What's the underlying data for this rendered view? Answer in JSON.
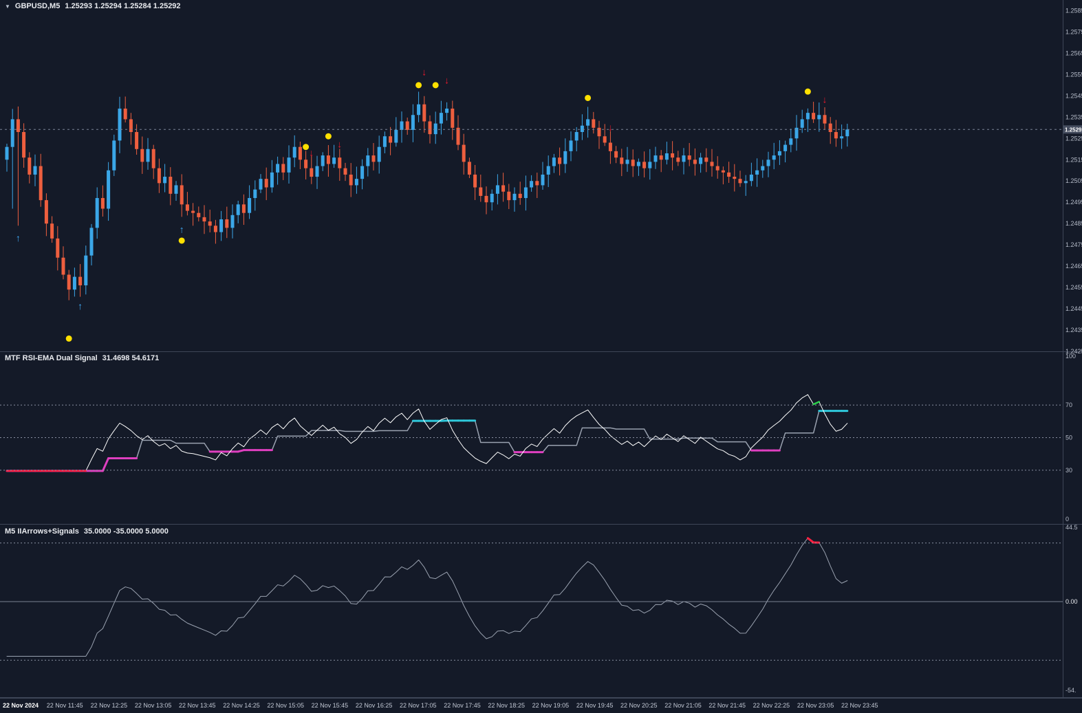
{
  "window": {
    "collapse_icon": "▼",
    "title": {
      "symbol": "GBPUSD,M5",
      "quote": "1.25293 1.25294 1.25284 1.25292"
    }
  },
  "colors": {
    "bg": "#141a28",
    "separator": "#3e4658",
    "axis_text": "#b6bcc9",
    "axis_text_bright": "#e8eaee",
    "grid_dash": "#8a91a3",
    "bull": "#3ba7e8",
    "bear": "#ee5f3f",
    "fast_line": "#ffffff",
    "slow_line": "#9aa2b0",
    "green": "#2bd24b",
    "red": "#ff2040",
    "magenta": "#df3fc0",
    "cyan": "#2fc9dc",
    "yellow": "#ffd21f",
    "dot": "#ffe000",
    "arrow_buy": "#3fa9f5",
    "arrow_sell": "#e8192c",
    "badge_bg": "#454d5f",
    "badge_text": "#ffffff",
    "current_line": "#7c8598"
  },
  "chart_data": [
    {
      "type": "candlestick",
      "pane": "main",
      "symbol": "GBPUSD",
      "timeframe": "M5",
      "quote": {
        "open": "1.25293",
        "high": "1.25294",
        "low": "1.25284",
        "close": "1.25292"
      },
      "price_axis": {
        "min": 1.2425,
        "max": 1.259,
        "first_tick": 1.2585,
        "tick_step": 0.001,
        "current_price": "1.25292",
        "current_price_value": 1.25292
      },
      "first_open": 1.2515,
      "closes": [
        1.2521,
        1.2534,
        1.2528,
        1.2516,
        1.2508,
        1.2512,
        1.2496,
        1.2485,
        1.2478,
        1.2469,
        1.2461,
        1.2454,
        1.246,
        1.2456,
        1.247,
        1.2483,
        1.2497,
        1.2492,
        1.251,
        1.2524,
        1.2539,
        1.2534,
        1.2528,
        1.252,
        1.2514,
        1.252,
        1.2511,
        1.2504,
        1.2507,
        1.2499,
        1.2503,
        1.2494,
        1.2491,
        1.249,
        1.2488,
        1.2486,
        1.2484,
        1.2481,
        1.2487,
        1.2483,
        1.2489,
        1.2494,
        1.249,
        1.2497,
        1.2501,
        1.2506,
        1.2502,
        1.2509,
        1.2513,
        1.2509,
        1.2516,
        1.2521,
        1.2515,
        1.2511,
        1.2507,
        1.2512,
        1.2517,
        1.2513,
        1.2516,
        1.2511,
        1.2508,
        1.2503,
        1.2506,
        1.2512,
        1.2517,
        1.2514,
        1.2521,
        1.2526,
        1.2523,
        1.2529,
        1.2533,
        1.2529,
        1.2536,
        1.2541,
        1.2533,
        1.2527,
        1.2532,
        1.2537,
        1.2539,
        1.253,
        1.2522,
        1.2514,
        1.2508,
        1.2502,
        1.2498,
        1.2495,
        1.2499,
        1.2503,
        1.25,
        1.2496,
        1.2499,
        1.2497,
        1.2502,
        1.2505,
        1.2503,
        1.2508,
        1.2512,
        1.2516,
        1.2513,
        1.2519,
        1.2524,
        1.2528,
        1.2531,
        1.2534,
        1.253,
        1.2526,
        1.2523,
        1.2519,
        1.2516,
        1.2513,
        1.2515,
        1.2512,
        1.2514,
        1.2511,
        1.2514,
        1.2517,
        1.2515,
        1.2518,
        1.2516,
        1.2514,
        1.2517,
        1.2515,
        1.2513,
        1.2516,
        1.2514,
        1.2512,
        1.251,
        1.2509,
        1.2507,
        1.2506,
        1.2504,
        1.2505,
        1.2508,
        1.251,
        1.2512,
        1.2515,
        1.2517,
        1.2519,
        1.2522,
        1.2525,
        1.253,
        1.2534,
        1.2537,
        1.2534,
        1.2536,
        1.2532,
        1.2528,
        1.2525,
        1.2526,
        1.25292
      ],
      "wick_overrides": {
        "1": 1.2492,
        "2": 1.2484,
        "11": 1.2449
      },
      "markers": {
        "yellow_dots": [
          [
            11,
            1.2431
          ],
          [
            31,
            1.2477
          ],
          [
            53,
            1.2521
          ],
          [
            57,
            1.2526
          ],
          [
            73,
            1.255
          ],
          [
            76,
            1.255
          ],
          [
            103,
            1.2544
          ],
          [
            142,
            1.2547
          ]
        ],
        "buy_arrows": [
          [
            2,
            1.2478
          ],
          [
            13,
            1.2446
          ],
          [
            31,
            1.2482
          ]
        ],
        "sell_arrows": [
          [
            54,
            1.2518
          ],
          [
            59,
            1.2522
          ],
          [
            74,
            1.2556
          ],
          [
            78,
            1.2552
          ],
          [
            107,
            1.253
          ],
          [
            145,
            1.2543
          ]
        ]
      }
    },
    {
      "type": "line",
      "pane": "rsi",
      "label": "MTF RSI-EMA Dual Signal",
      "values_text": "31.4698 54.6171",
      "current_fast": 31.4698,
      "current_slow": 54.6171,
      "fast_line": "RSI(14) of closes (white, red < 30, green > 70)",
      "slow_line": "stepped MTF EMA of RSI (gray, magenta low zone, cyan high zone)",
      "levels": [
        70,
        50,
        30
      ],
      "ylim": [
        0,
        100
      ],
      "axis_ticks": [
        100,
        70,
        50,
        30,
        0
      ]
    },
    {
      "type": "line",
      "pane": "momentum",
      "label": "M5 IIArrows+Signals",
      "values_text": "35.0000 -35.0000 5.0000",
      "upper_level": 35,
      "lower_level": -35,
      "zero_level": 0,
      "ylim": [
        -57,
        46
      ],
      "axis_ticks": [
        [
          "44.5",
          44.3
        ],
        [
          "0.00",
          0
        ],
        [
          "-54.",
          -53
        ]
      ],
      "line": "oscillator of closes (gray; yellow entering extremes, red leaving top, cyan leaving bottom)"
    }
  ],
  "time_axis": {
    "labels": [
      "22 Nov 2024",
      "22 Nov 11:45",
      "22 Nov 12:25",
      "22 Nov 13:05",
      "22 Nov 13:45",
      "22 Nov 14:25",
      "22 Nov 15:05",
      "22 Nov 15:45",
      "22 Nov 16:25",
      "22 Nov 17:05",
      "22 Nov 17:45",
      "22 Nov 18:25",
      "22 Nov 19:05",
      "22 Nov 19:45",
      "22 Nov 20:25",
      "22 Nov 21:05",
      "22 Nov 21:45",
      "22 Nov 22:25",
      "22 Nov 23:05",
      "22 Nov 23:45"
    ]
  }
}
